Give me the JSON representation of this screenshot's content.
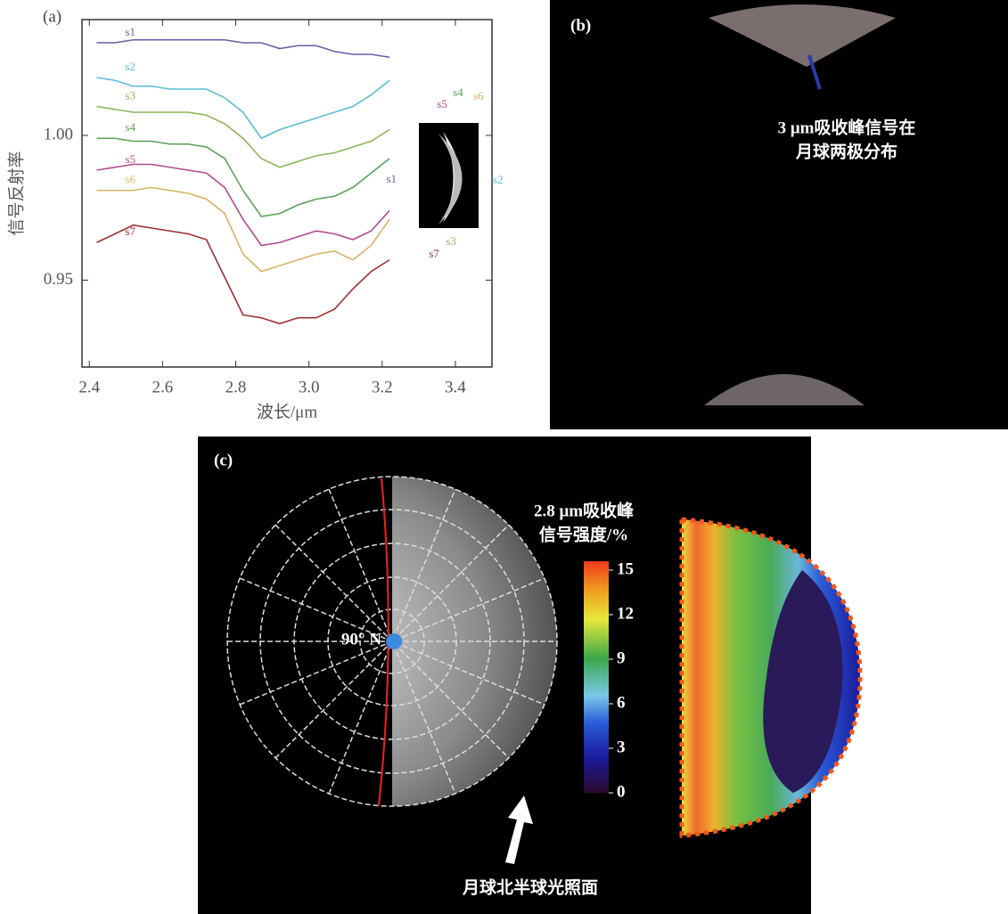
{
  "chart_data": [
    {
      "type": "line",
      "label": "(a)",
      "x_label": "波长/μm",
      "y_label": "信号反射率",
      "x": [
        2.42,
        2.47,
        2.52,
        2.57,
        2.62,
        2.67,
        2.72,
        2.77,
        2.82,
        2.87,
        2.92,
        2.97,
        3.02,
        3.07,
        3.12,
        3.17,
        3.22
      ],
      "series": [
        {
          "name": "s1",
          "color": "#6a5fa8",
          "values": [
            1.032,
            1.032,
            1.033,
            1.033,
            1.033,
            1.033,
            1.033,
            1.033,
            1.032,
            1.032,
            1.03,
            1.031,
            1.031,
            1.029,
            1.028,
            1.028,
            1.027
          ]
        },
        {
          "name": "s2",
          "color": "#5bbcd6",
          "values": [
            1.02,
            1.019,
            1.017,
            1.017,
            1.016,
            1.016,
            1.016,
            1.013,
            1.008,
            0.999,
            1.002,
            1.004,
            1.006,
            1.008,
            1.01,
            1.014,
            1.019
          ]
        },
        {
          "name": "s3",
          "color": "#8cb65a",
          "values": [
            1.01,
            1.009,
            1.008,
            1.008,
            1.008,
            1.008,
            1.007,
            1.004,
            0.999,
            0.992,
            0.989,
            0.991,
            0.993,
            0.994,
            0.996,
            0.998,
            1.002
          ]
        },
        {
          "name": "s4",
          "color": "#5aa05a",
          "values": [
            0.999,
            0.999,
            0.998,
            0.998,
            0.997,
            0.997,
            0.996,
            0.992,
            0.981,
            0.972,
            0.973,
            0.976,
            0.978,
            0.979,
            0.982,
            0.987,
            0.992
          ]
        },
        {
          "name": "s5",
          "color": "#b04a8e",
          "values": [
            0.988,
            0.989,
            0.99,
            0.99,
            0.989,
            0.988,
            0.987,
            0.982,
            0.971,
            0.962,
            0.963,
            0.965,
            0.967,
            0.966,
            0.964,
            0.967,
            0.974
          ]
        },
        {
          "name": "s6",
          "color": "#d9b264",
          "values": [
            0.981,
            0.981,
            0.981,
            0.982,
            0.981,
            0.98,
            0.978,
            0.973,
            0.959,
            0.953,
            0.955,
            0.957,
            0.959,
            0.96,
            0.957,
            0.962,
            0.971
          ]
        },
        {
          "name": "s7",
          "color": "#9c3030",
          "values": [
            0.963,
            0.966,
            0.969,
            0.968,
            0.967,
            0.966,
            0.964,
            0.951,
            0.938,
            0.937,
            0.935,
            0.937,
            0.937,
            0.94,
            0.947,
            0.953,
            0.957
          ]
        }
      ],
      "xlim": [
        2.38,
        3.5
      ],
      "xticks": [
        2.4,
        2.6,
        2.8,
        {
          "value": 3,
          "label": "3.0"
        },
        3.2,
        3.4
      ],
      "ylim": [
        0.92,
        1.04
      ],
      "yticks": [
        0.95,
        {
          "value": 1,
          "label": "1.00"
        }
      ]
    },
    {
      "type": "image",
      "label": "(b)",
      "annotation": [
        "3 μm吸收峰信号在",
        "月球两极分布"
      ]
    },
    {
      "type": "image",
      "label": "(c)",
      "pole_label": "90° N",
      "annotation": "月球北半球光照面",
      "colorbar_title": [
        "2.8 μm吸收峰",
        "信号强度/%"
      ],
      "colorbar_lim": [
        0,
        15
      ],
      "colorbar_ticks": [
        0,
        3,
        6,
        9,
        12,
        15
      ]
    }
  ]
}
